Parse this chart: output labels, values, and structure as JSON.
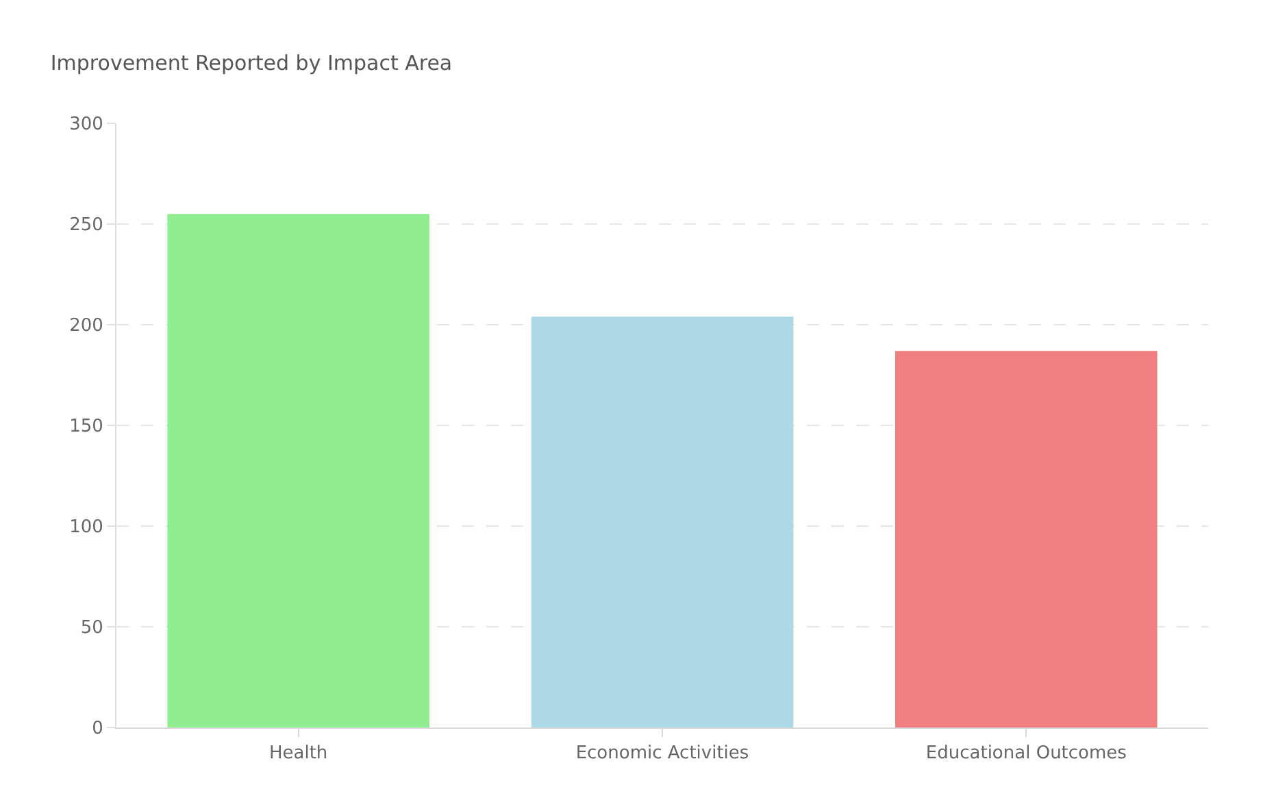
{
  "chart_data": {
    "type": "bar",
    "title": "Improvement Reported by Impact Area",
    "categories": [
      "Health",
      "Economic Activities",
      "Educational Outcomes"
    ],
    "values": [
      255,
      204,
      187
    ],
    "colors": [
      "#90ee90",
      "#add8e6",
      "#f08080"
    ],
    "ylim": [
      0,
      300
    ],
    "yticks": [
      0,
      50,
      100,
      150,
      200,
      250,
      300
    ],
    "grid": "y",
    "legend": false
  }
}
